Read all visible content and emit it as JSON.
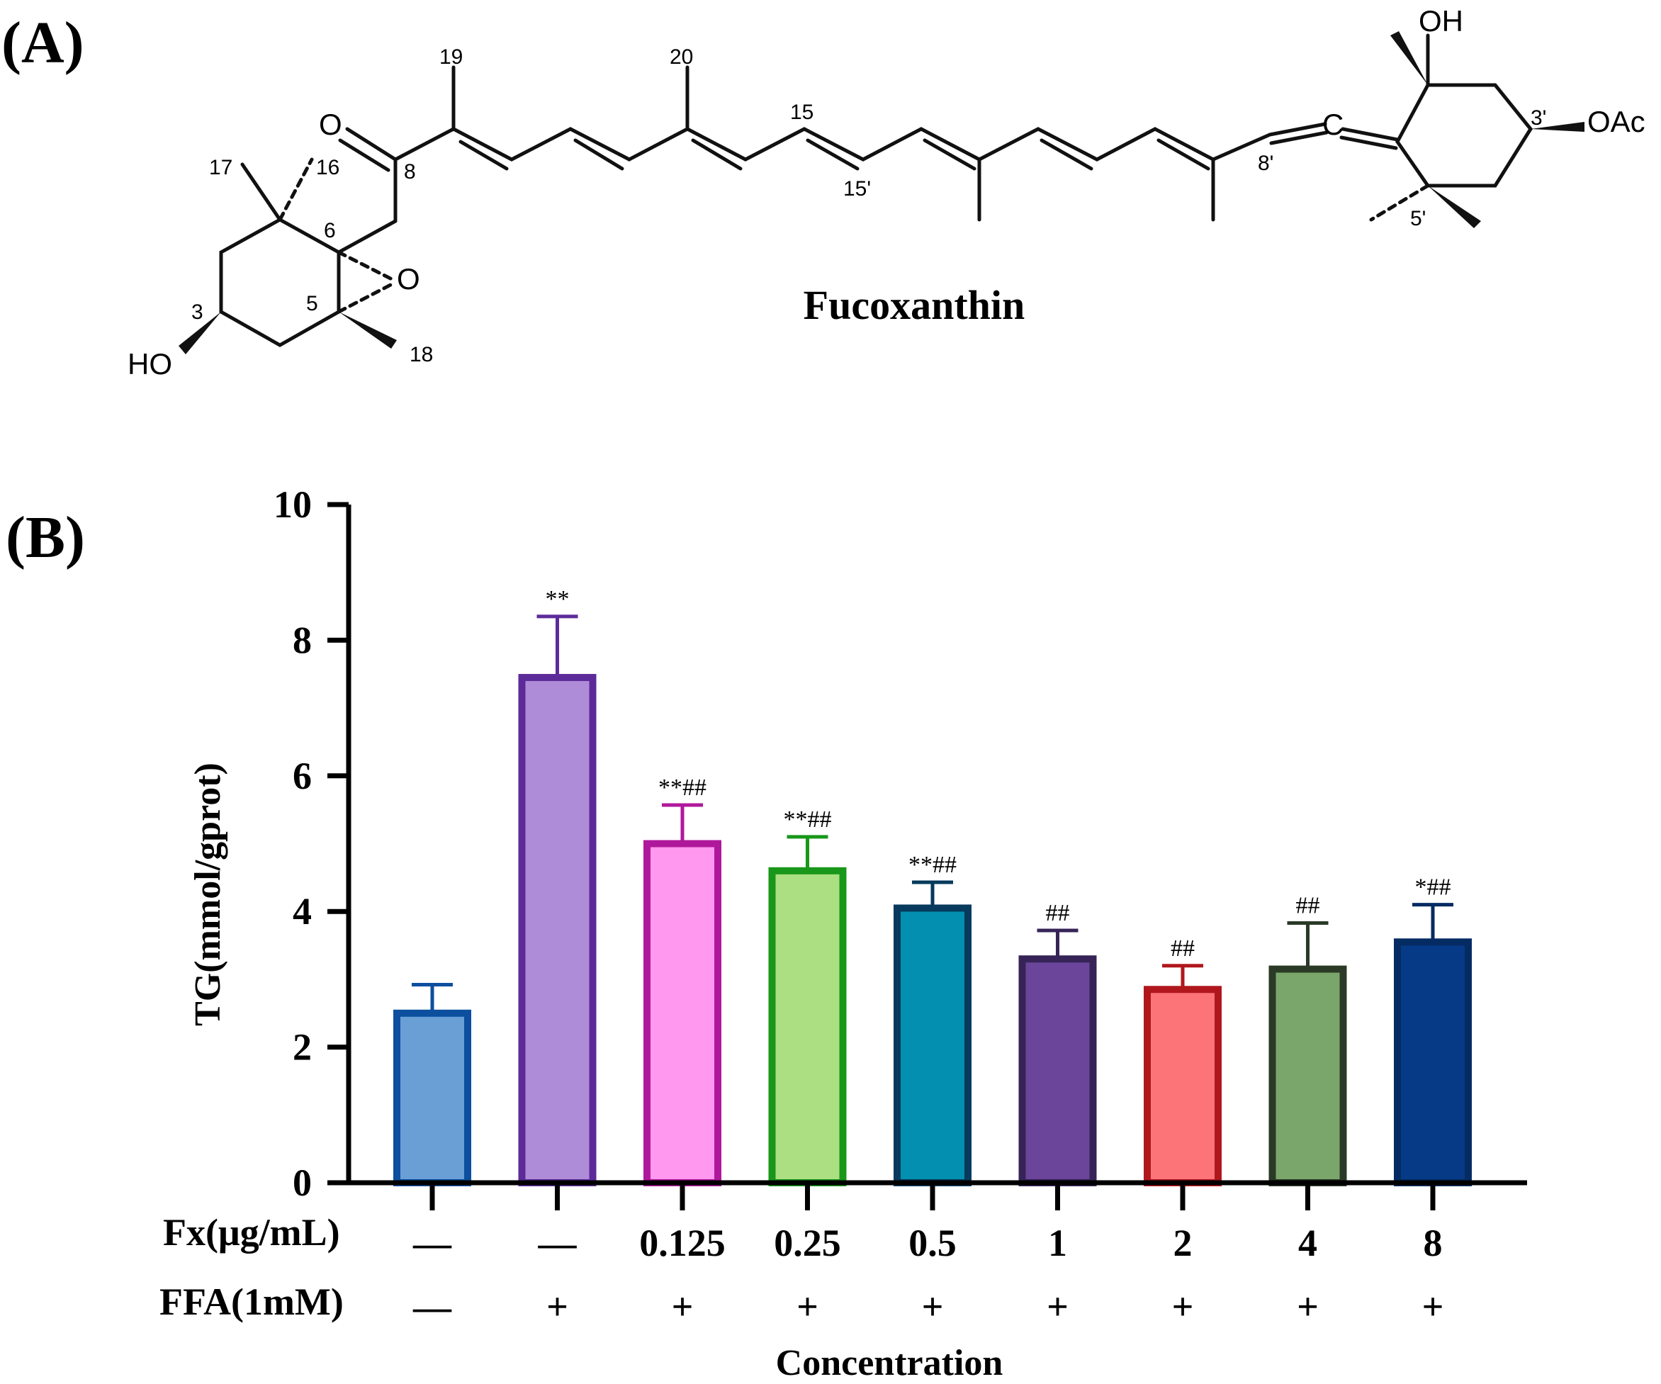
{
  "panel_a": {
    "label": "(A)",
    "molecule_name": "Fucoxanthin",
    "atoms": {
      "O_keto": "O",
      "O_epoxide": "O",
      "OH_left": "HO",
      "OH_right": "OH",
      "OAc": "OAc",
      "C_allene": "C"
    },
    "numbering": [
      "3",
      "5",
      "6",
      "8",
      "16",
      "17",
      "18",
      "19",
      "20",
      "15",
      "15'",
      "8'",
      "3'",
      "5'"
    ]
  },
  "panel_b": {
    "label": "(B)"
  },
  "chart_data": {
    "type": "bar",
    "ylabel": "TG(mmol/gprot)",
    "xlabel": "Concentration",
    "ylim": [
      0,
      10
    ],
    "yticks": [
      "0",
      "2",
      "4",
      "6",
      "8",
      "10"
    ],
    "row_labels": {
      "fx": "Fx(μg/mL)",
      "ffa": "FFA(1mM)"
    },
    "categories_fx": [
      "—",
      "—",
      "0.125",
      "0.25",
      "0.5",
      "1",
      "2",
      "4",
      "8"
    ],
    "categories_ffa": [
      "—",
      "+",
      "+",
      "+",
      "+",
      "+",
      "+",
      "+",
      "+"
    ],
    "values": [
      2.5,
      7.45,
      5.0,
      4.6,
      4.05,
      3.3,
      2.85,
      3.15,
      3.55
    ],
    "errors": [
      0.42,
      0.9,
      0.57,
      0.5,
      0.38,
      0.42,
      0.35,
      0.68,
      0.55
    ],
    "significance": [
      "",
      "**",
      "**##",
      "**##",
      "**##",
      "##",
      "##",
      "##",
      "*##"
    ],
    "fill_colors": [
      "#6a9fd6",
      "#ae8cd8",
      "#ff98ee",
      "#acdf82",
      "#028fb0",
      "#6a4599",
      "#fc7478",
      "#7ba66b",
      "#063a86"
    ],
    "edge_colors": [
      "#0b4f9e",
      "#5d2b99",
      "#b0189c",
      "#19971a",
      "#073a5c",
      "#362458",
      "#b0171d",
      "#2b3a26",
      "#052b63"
    ]
  }
}
